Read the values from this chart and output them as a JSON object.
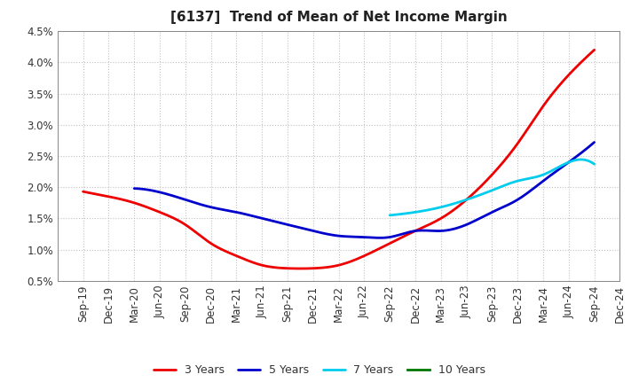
{
  "title": "[6137]  Trend of Mean of Net Income Margin",
  "background_color": "#ffffff",
  "plot_background_color": "#ffffff",
  "grid_color": "#bbbbbb",
  "ylim": [
    0.005,
    0.045
  ],
  "yticks": [
    0.005,
    0.01,
    0.015,
    0.02,
    0.025,
    0.03,
    0.035,
    0.04,
    0.045
  ],
  "ytick_labels": [
    "0.5%",
    "1.0%",
    "1.5%",
    "2.0%",
    "2.5%",
    "3.0%",
    "3.5%",
    "4.0%",
    "4.5%"
  ],
  "x_labels": [
    "Sep-19",
    "Dec-19",
    "Mar-20",
    "Jun-20",
    "Sep-20",
    "Dec-20",
    "Mar-21",
    "Jun-21",
    "Sep-21",
    "Dec-21",
    "Mar-22",
    "Jun-22",
    "Sep-22",
    "Dec-22",
    "Mar-23",
    "Jun-23",
    "Sep-23",
    "Dec-23",
    "Mar-24",
    "Jun-24",
    "Sep-24",
    "Dec-24"
  ],
  "series": {
    "3 Years": {
      "color": "#ee0000",
      "data": [
        0.0193,
        0.0185,
        0.0175,
        0.016,
        0.014,
        0.011,
        0.009,
        0.0075,
        0.007,
        0.007,
        0.0075,
        0.009,
        0.011,
        0.013,
        0.015,
        0.018,
        0.022,
        0.027,
        0.033,
        0.038,
        0.042,
        null
      ]
    },
    "5 Years": {
      "color": "#0000cc",
      "data": [
        null,
        null,
        0.0198,
        0.0192,
        0.018,
        0.0168,
        0.016,
        0.015,
        0.014,
        0.013,
        0.0122,
        0.012,
        0.012,
        0.013,
        0.013,
        0.014,
        0.016,
        0.018,
        0.021,
        0.024,
        0.0272,
        null
      ]
    },
    "7 Years": {
      "color": "#00ccee",
      "data": [
        null,
        null,
        null,
        null,
        null,
        null,
        null,
        null,
        null,
        null,
        null,
        null,
        0.0155,
        0.016,
        0.0168,
        0.018,
        0.0195,
        0.021,
        0.022,
        0.024,
        0.0237,
        null
      ]
    },
    "10 Years": {
      "color": "#007700",
      "data": [
        null,
        null,
        null,
        null,
        null,
        null,
        null,
        null,
        null,
        null,
        null,
        null,
        null,
        null,
        null,
        null,
        null,
        null,
        null,
        null,
        null,
        null
      ]
    }
  },
  "legend_order": [
    "3 Years",
    "5 Years",
    "7 Years",
    "10 Years"
  ],
  "title_fontsize": 11,
  "tick_fontsize": 8.5,
  "line_width": 2.0
}
